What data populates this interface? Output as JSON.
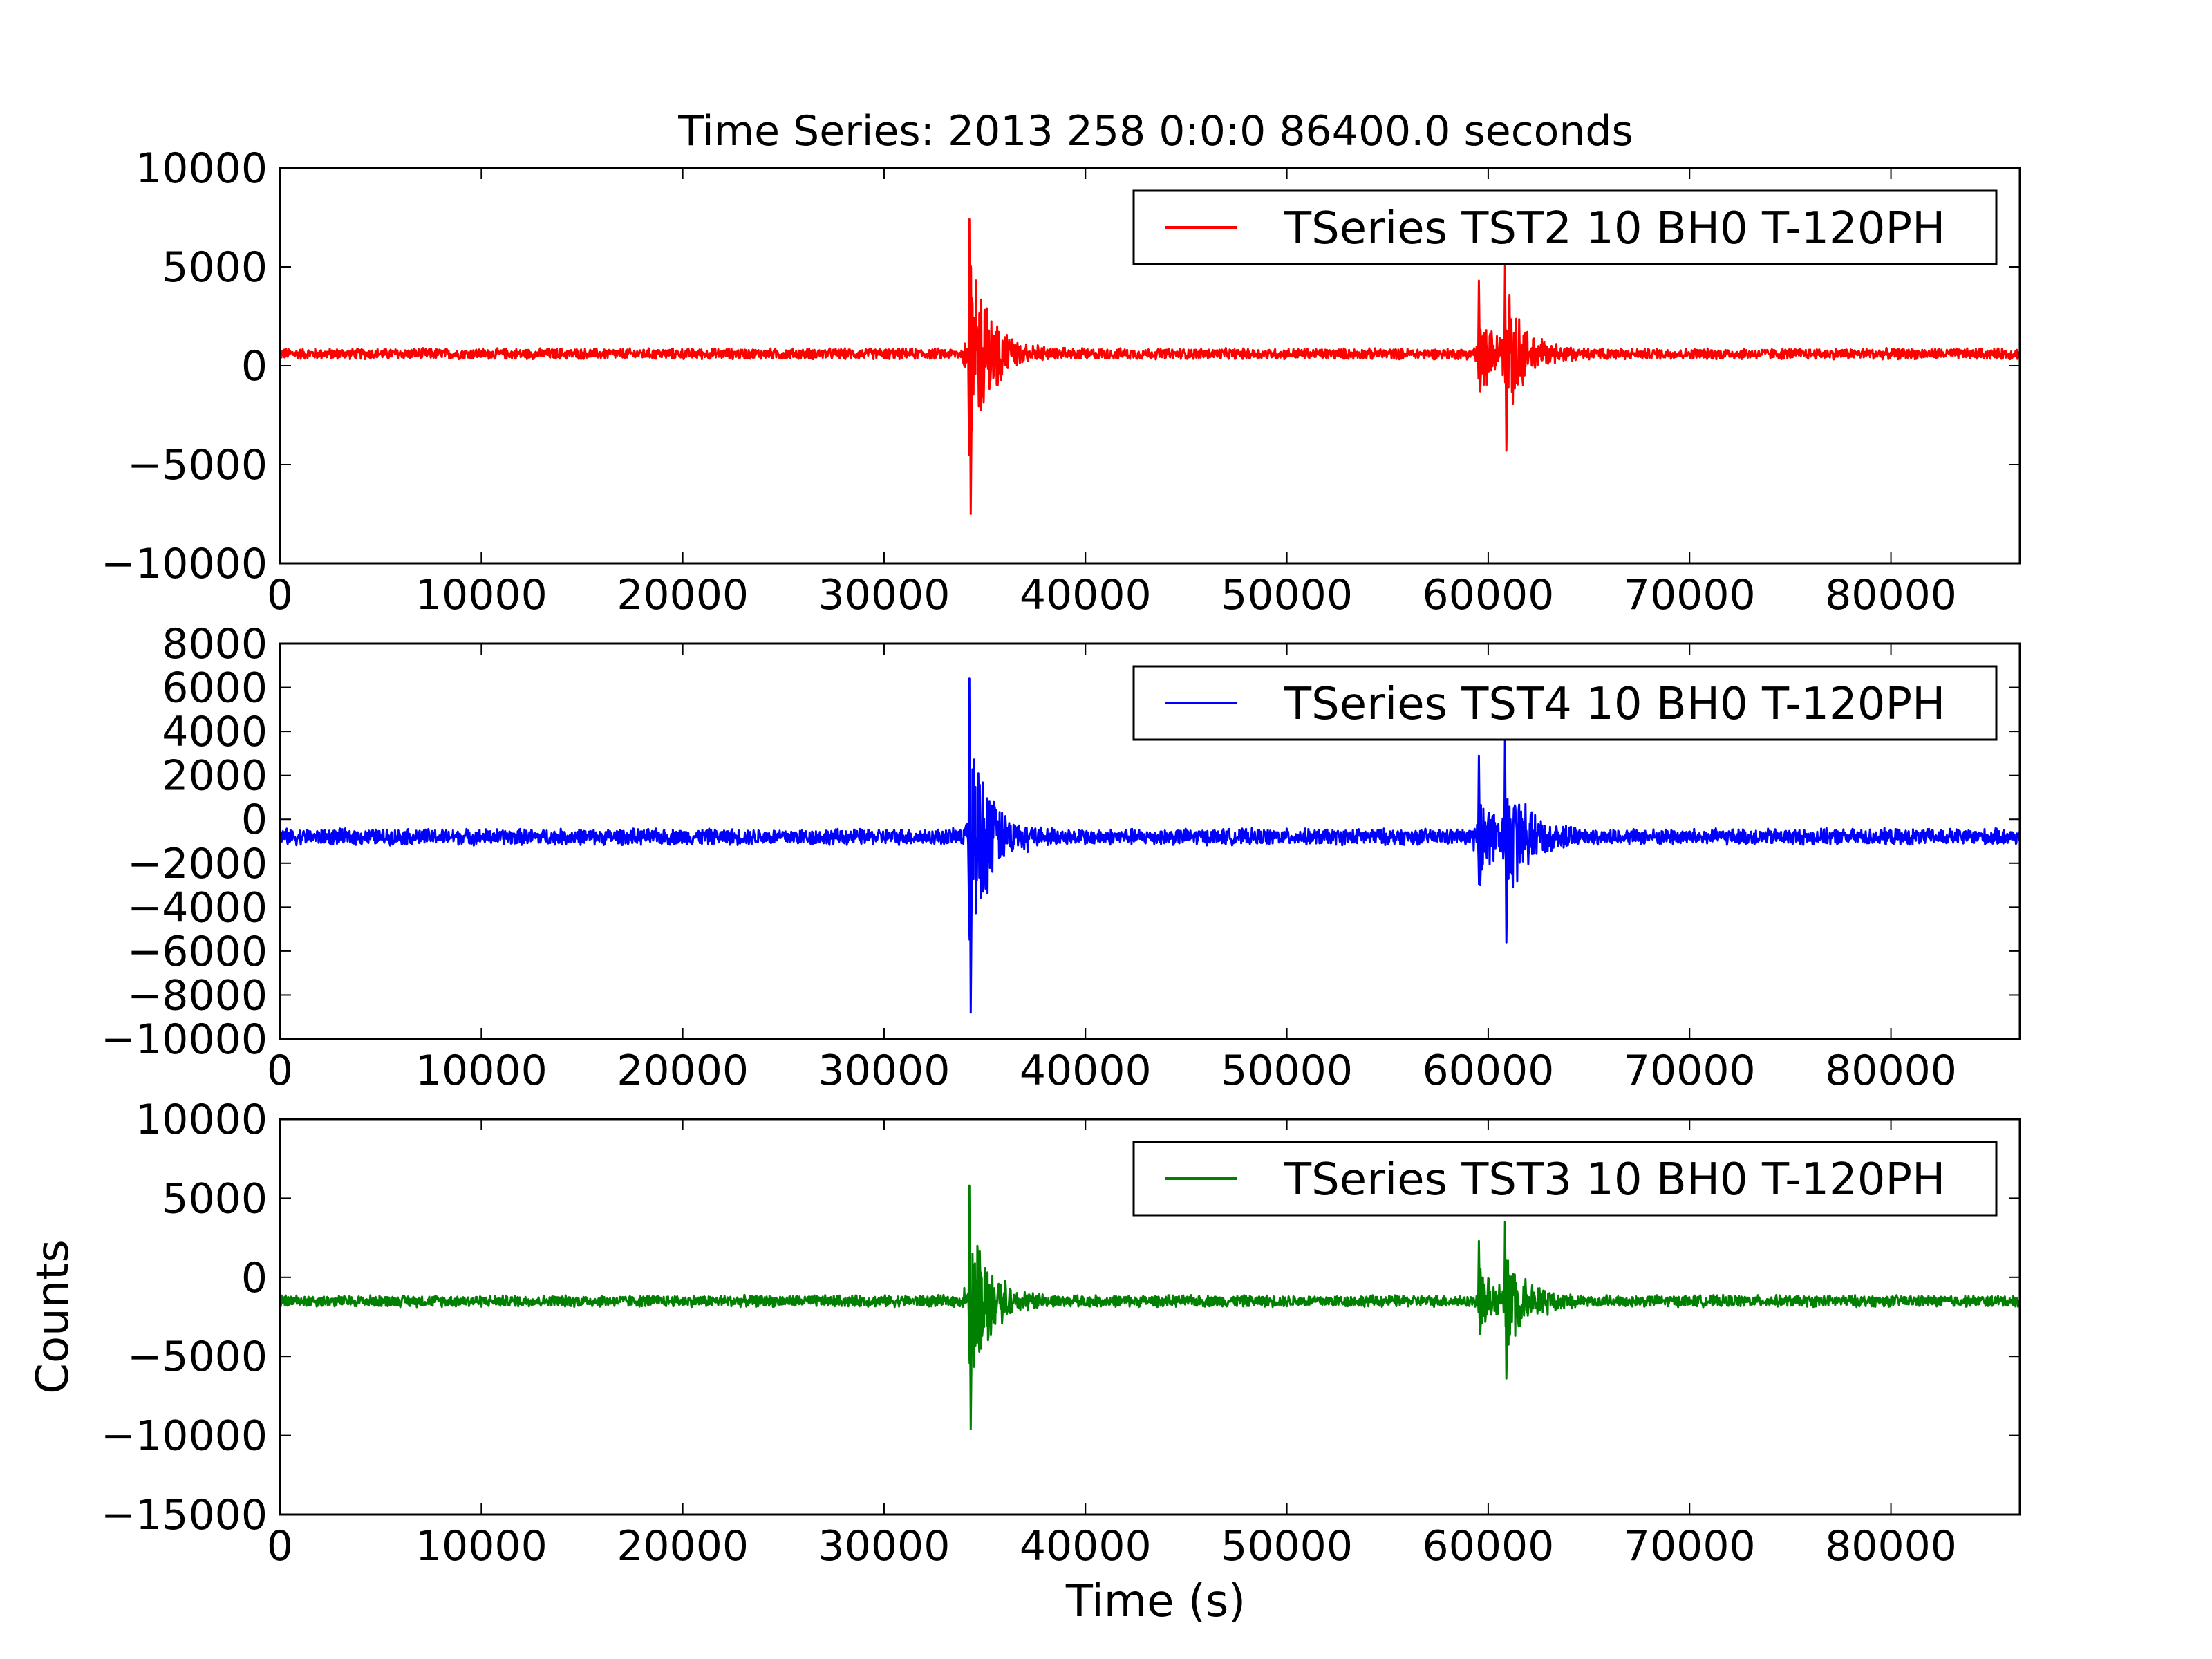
{
  "chart_data": {
    "type": "line",
    "title": "Time Series: 2013 258 0:0:0 86400.0 seconds",
    "xlabel": "Time (s)",
    "ylabel": "Counts",
    "grid": false,
    "legend_position": "top-right",
    "xlim": [
      0,
      86400
    ],
    "xticks": [
      0,
      10000,
      20000,
      30000,
      40000,
      50000,
      60000,
      70000,
      80000
    ],
    "panels": [
      {
        "series_name": "TSeries TST2 10 BH0 T-120PH",
        "color": "#ff0000",
        "ylim": [
          -10000,
          10000
        ],
        "yticks": [
          -10000,
          -5000,
          0,
          5000,
          10000
        ],
        "baseline": 600,
        "noise_amplitude": 300,
        "events": [
          {
            "t": 34200,
            "max": 7400,
            "min": -7500
          },
          {
            "t": 59500,
            "max": 4300,
            "min": -1300
          },
          {
            "t": 60800,
            "max": 5100,
            "min": -4300
          }
        ]
      },
      {
        "series_name": "TSeries TST4 10 BH0 T-120PH",
        "color": "#0000ff",
        "ylim": [
          -10000,
          8000
        ],
        "yticks": [
          -10000,
          -8000,
          -6000,
          -4000,
          -2000,
          0,
          2000,
          4000,
          6000,
          8000
        ],
        "baseline": -800,
        "noise_amplitude": 400,
        "events": [
          {
            "t": 34200,
            "max": 6400,
            "min": -8800
          },
          {
            "t": 59500,
            "max": 2900,
            "min": -3000
          },
          {
            "t": 60800,
            "max": 3800,
            "min": -5600
          }
        ]
      },
      {
        "series_name": "TSeries TST3 10 BH0 T-120PH",
        "color": "#008000",
        "ylim": [
          -15000,
          10000
        ],
        "yticks": [
          -15000,
          -10000,
          -5000,
          0,
          5000,
          10000
        ],
        "baseline": -1500,
        "noise_amplitude": 400,
        "events": [
          {
            "t": 34200,
            "max": 5800,
            "min": -9600
          },
          {
            "t": 59500,
            "max": 2300,
            "min": -3600
          },
          {
            "t": 60800,
            "max": 3500,
            "min": -6400
          }
        ]
      }
    ]
  }
}
